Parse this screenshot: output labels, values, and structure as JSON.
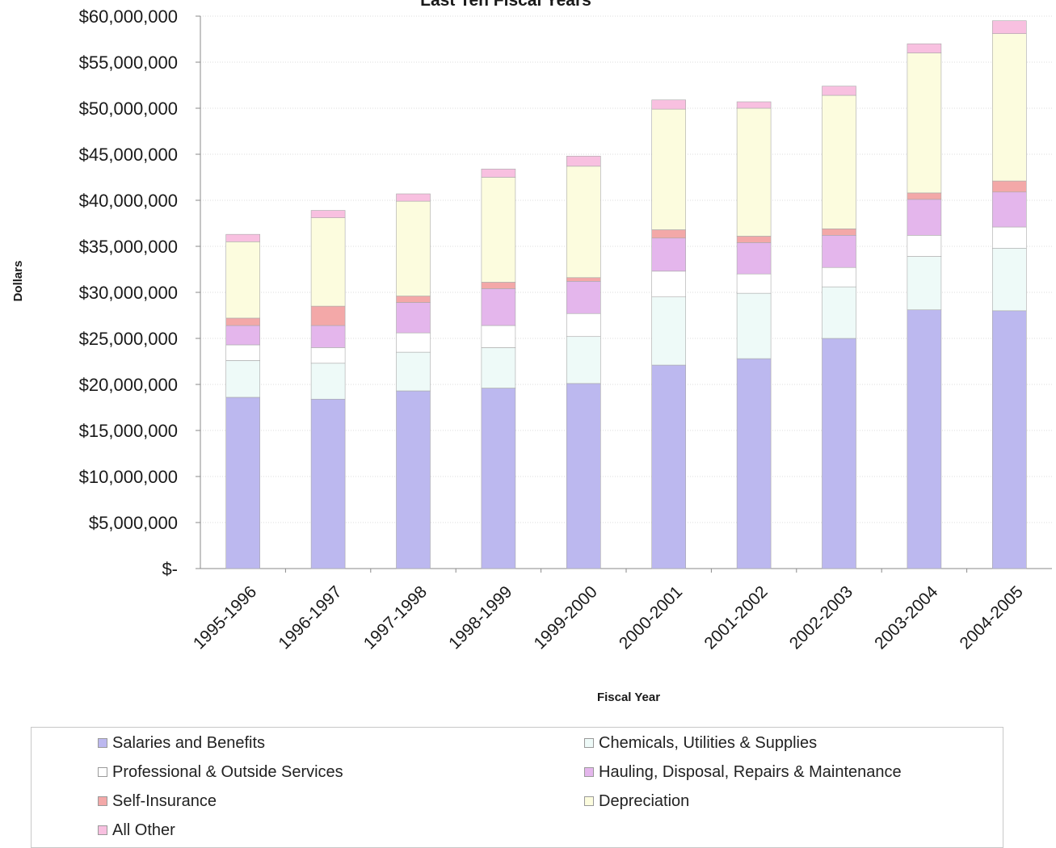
{
  "chart_data": {
    "type": "bar",
    "stacked": true,
    "title": "Last Ten Fiscal Years",
    "xlabel": "Fiscal Year",
    "ylabel": "Dollars",
    "ylim": [
      0,
      60000000
    ],
    "grid": true,
    "legend_position": "bottom",
    "y_tick_labels": [
      "$-",
      "$5,000,000",
      "$10,000,000",
      "$15,000,000",
      "$20,000,000",
      "$25,000,000",
      "$30,000,000",
      "$35,000,000",
      "$40,000,000",
      "$45,000,000",
      "$50,000,000",
      "$55,000,000",
      "$60,000,000"
    ],
    "categories": [
      "1995-1996",
      "1996-1997",
      "1997-1998",
      "1998-1999",
      "1999-2000",
      "2000-2001",
      "2001-2002",
      "2002-2003",
      "2003-2004",
      "2004-2005"
    ],
    "series": [
      {
        "name": "Salaries and Benefits",
        "color": "#bcb8ef",
        "values": [
          18600000,
          18400000,
          19300000,
          19600000,
          20100000,
          22100000,
          22800000,
          25000000,
          28100000,
          28000000
        ]
      },
      {
        "name": "Chemicals, Utilities & Supplies",
        "color": "#eefaf8",
        "values": [
          4000000,
          3900000,
          4200000,
          4400000,
          5100000,
          7400000,
          7100000,
          5600000,
          5800000,
          6800000
        ]
      },
      {
        "name": "Professional & Outside Services",
        "color": "#ffffff",
        "values": [
          1700000,
          1700000,
          2100000,
          2400000,
          2500000,
          2800000,
          2100000,
          2100000,
          2300000,
          2300000
        ]
      },
      {
        "name": "Hauling, Disposal, Repairs & Maintenance",
        "color": "#e4b6ec",
        "values": [
          2100000,
          2400000,
          3300000,
          4000000,
          3500000,
          3600000,
          3400000,
          3500000,
          3900000,
          3800000
        ]
      },
      {
        "name": "Self-Insurance",
        "color": "#f3a8a8",
        "values": [
          800000,
          2100000,
          700000,
          700000,
          400000,
          900000,
          700000,
          700000,
          700000,
          1200000
        ]
      },
      {
        "name": "Depreciation",
        "color": "#fcfcde",
        "values": [
          8300000,
          9600000,
          10300000,
          11400000,
          12100000,
          13100000,
          13900000,
          14500000,
          15200000,
          16000000
        ]
      },
      {
        "name": "All Other",
        "color": "#f8c0e0",
        "values": [
          800000,
          800000,
          800000,
          900000,
          1100000,
          1000000,
          700000,
          1000000,
          1000000,
          1400000
        ]
      }
    ]
  }
}
